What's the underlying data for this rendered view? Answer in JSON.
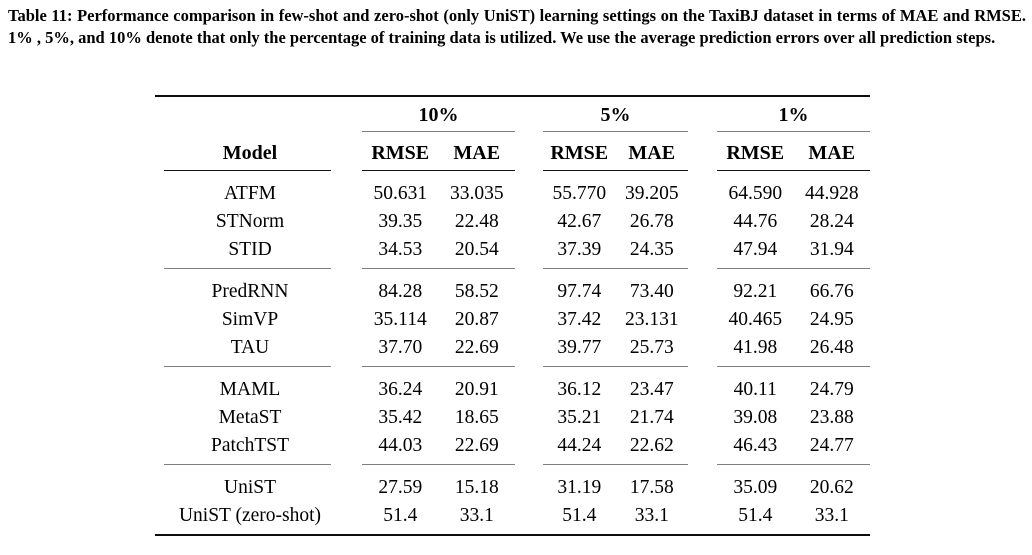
{
  "caption": {
    "text": "Table 11: Performance comparison in few-shot and zero-shot (only UniST) learning settings on the TaxiBJ dataset in terms of MAE and RMSE. 1% , 5%, and 10% denote that only the percentage of training data is utilized. We use the average prediction errors over all prediction steps."
  },
  "table": {
    "model_header": "Model",
    "groups": [
      {
        "label": "10%",
        "columns": [
          "RMSE",
          "MAE"
        ]
      },
      {
        "label": "5%",
        "columns": [
          "RMSE",
          "MAE"
        ]
      },
      {
        "label": "1%",
        "columns": [
          "RMSE",
          "MAE"
        ]
      }
    ],
    "row_groups": [
      {
        "rows": [
          {
            "model": "ATFM",
            "values": [
              "50.631",
              "33.035",
              "55.770",
              "39.205",
              "64.590",
              "44.928"
            ]
          },
          {
            "model": "STNorm",
            "values": [
              "39.35",
              "22.48",
              "42.67",
              "26.78",
              "44.76",
              "28.24"
            ]
          },
          {
            "model": "STID",
            "values": [
              "34.53",
              "20.54",
              "37.39",
              "24.35",
              "47.94",
              "31.94"
            ]
          }
        ]
      },
      {
        "rows": [
          {
            "model": "PredRNN",
            "values": [
              "84.28",
              "58.52",
              "97.74",
              "73.40",
              "92.21",
              "66.76"
            ]
          },
          {
            "model": "SimVP",
            "values": [
              "35.114",
              "20.87",
              "37.42",
              "23.131",
              "40.465",
              "24.95"
            ]
          },
          {
            "model": "TAU",
            "values": [
              "37.70",
              "22.69",
              "39.77",
              "25.73",
              "41.98",
              "26.48"
            ]
          }
        ]
      },
      {
        "rows": [
          {
            "model": "MAML",
            "values": [
              "36.24",
              "20.91",
              "36.12",
              "23.47",
              "40.11",
              "24.79"
            ]
          },
          {
            "model": "MetaST",
            "values": [
              "35.42",
              "18.65",
              "35.21",
              "21.74",
              "39.08",
              "23.88"
            ]
          },
          {
            "model": "PatchTST",
            "values": [
              "44.03",
              "22.69",
              "44.24",
              "22.62",
              "46.43",
              "24.77"
            ]
          }
        ]
      },
      {
        "rows": [
          {
            "model": "UniST",
            "values": [
              "27.59",
              "15.18",
              "31.19",
              "17.58",
              "35.09",
              "20.62"
            ]
          },
          {
            "model": "UniST (zero-shot)",
            "values": [
              "51.4",
              "33.1",
              "51.4",
              "33.1",
              "51.4",
              "33.1"
            ]
          }
        ]
      }
    ]
  },
  "chart_data": {
    "type": "table",
    "title": "Table 11: Few-shot and zero-shot performance on TaxiBJ (average prediction errors)",
    "columns": [
      "Model",
      "10% RMSE",
      "10% MAE",
      "5% RMSE",
      "5% MAE",
      "1% RMSE",
      "1% MAE"
    ],
    "rows": [
      [
        "ATFM",
        50.631,
        33.035,
        55.77,
        39.205,
        64.59,
        44.928
      ],
      [
        "STNorm",
        39.35,
        22.48,
        42.67,
        26.78,
        44.76,
        28.24
      ],
      [
        "STID",
        34.53,
        20.54,
        37.39,
        24.35,
        47.94,
        31.94
      ],
      [
        "PredRNN",
        84.28,
        58.52,
        97.74,
        73.4,
        92.21,
        66.76
      ],
      [
        "SimVP",
        35.114,
        20.87,
        37.42,
        23.131,
        40.465,
        24.95
      ],
      [
        "TAU",
        37.7,
        22.69,
        39.77,
        25.73,
        41.98,
        26.48
      ],
      [
        "MAML",
        36.24,
        20.91,
        36.12,
        23.47,
        40.11,
        24.79
      ],
      [
        "MetaST",
        35.42,
        18.65,
        35.21,
        21.74,
        39.08,
        23.88
      ],
      [
        "PatchTST",
        44.03,
        22.69,
        44.24,
        22.62,
        46.43,
        24.77
      ],
      [
        "UniST",
        27.59,
        15.18,
        31.19,
        17.58,
        35.09,
        20.62
      ],
      [
        "UniST (zero-shot)",
        51.4,
        33.1,
        51.4,
        33.1,
        51.4,
        33.1
      ]
    ]
  },
  "colors": {
    "background": "#ffffff",
    "text": "#000000",
    "rule_heavy": "#0d0d0d",
    "rule_light": "#7e7e7e"
  }
}
